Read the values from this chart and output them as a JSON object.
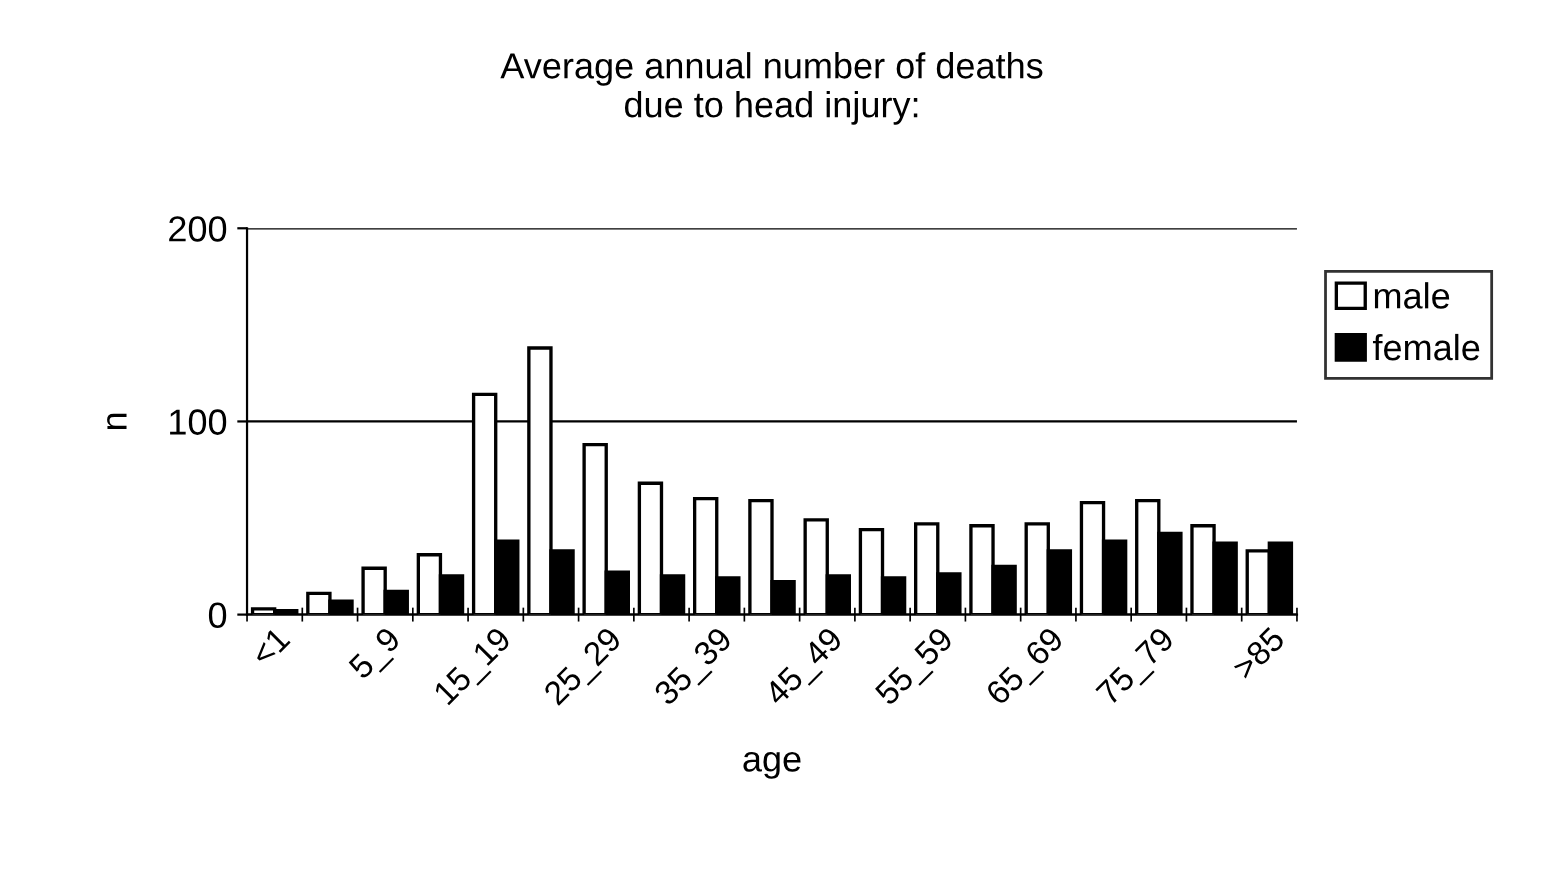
{
  "chart_data": {
    "type": "bar",
    "title": "Average annual number of deaths\ndue to head injury:",
    "xlabel": "age",
    "ylabel": "n",
    "categories": [
      "<1",
      null,
      "5_9",
      null,
      "15_19",
      null,
      "25_29",
      null,
      "35_39",
      null,
      "45_49",
      null,
      "55_59",
      null,
      "65_69",
      null,
      "75_79",
      null,
      ">85"
    ],
    "series": [
      {
        "name": "male",
        "color": "#ffffff",
        "values": [
          3,
          11,
          24,
          31,
          114,
          138,
          88,
          68,
          60,
          59,
          49,
          44,
          47,
          46,
          47,
          58,
          59,
          46,
          33
        ]
      },
      {
        "name": "female",
        "color": "#000000",
        "values": [
          2,
          7,
          12,
          20,
          38,
          33,
          22,
          20,
          19,
          17,
          20,
          19,
          21,
          25,
          33,
          38,
          42,
          37,
          37
        ]
      }
    ],
    "ylim": [
      0,
      200
    ],
    "yticks": [
      0,
      100,
      200
    ],
    "grid": "y",
    "legend": "right"
  }
}
